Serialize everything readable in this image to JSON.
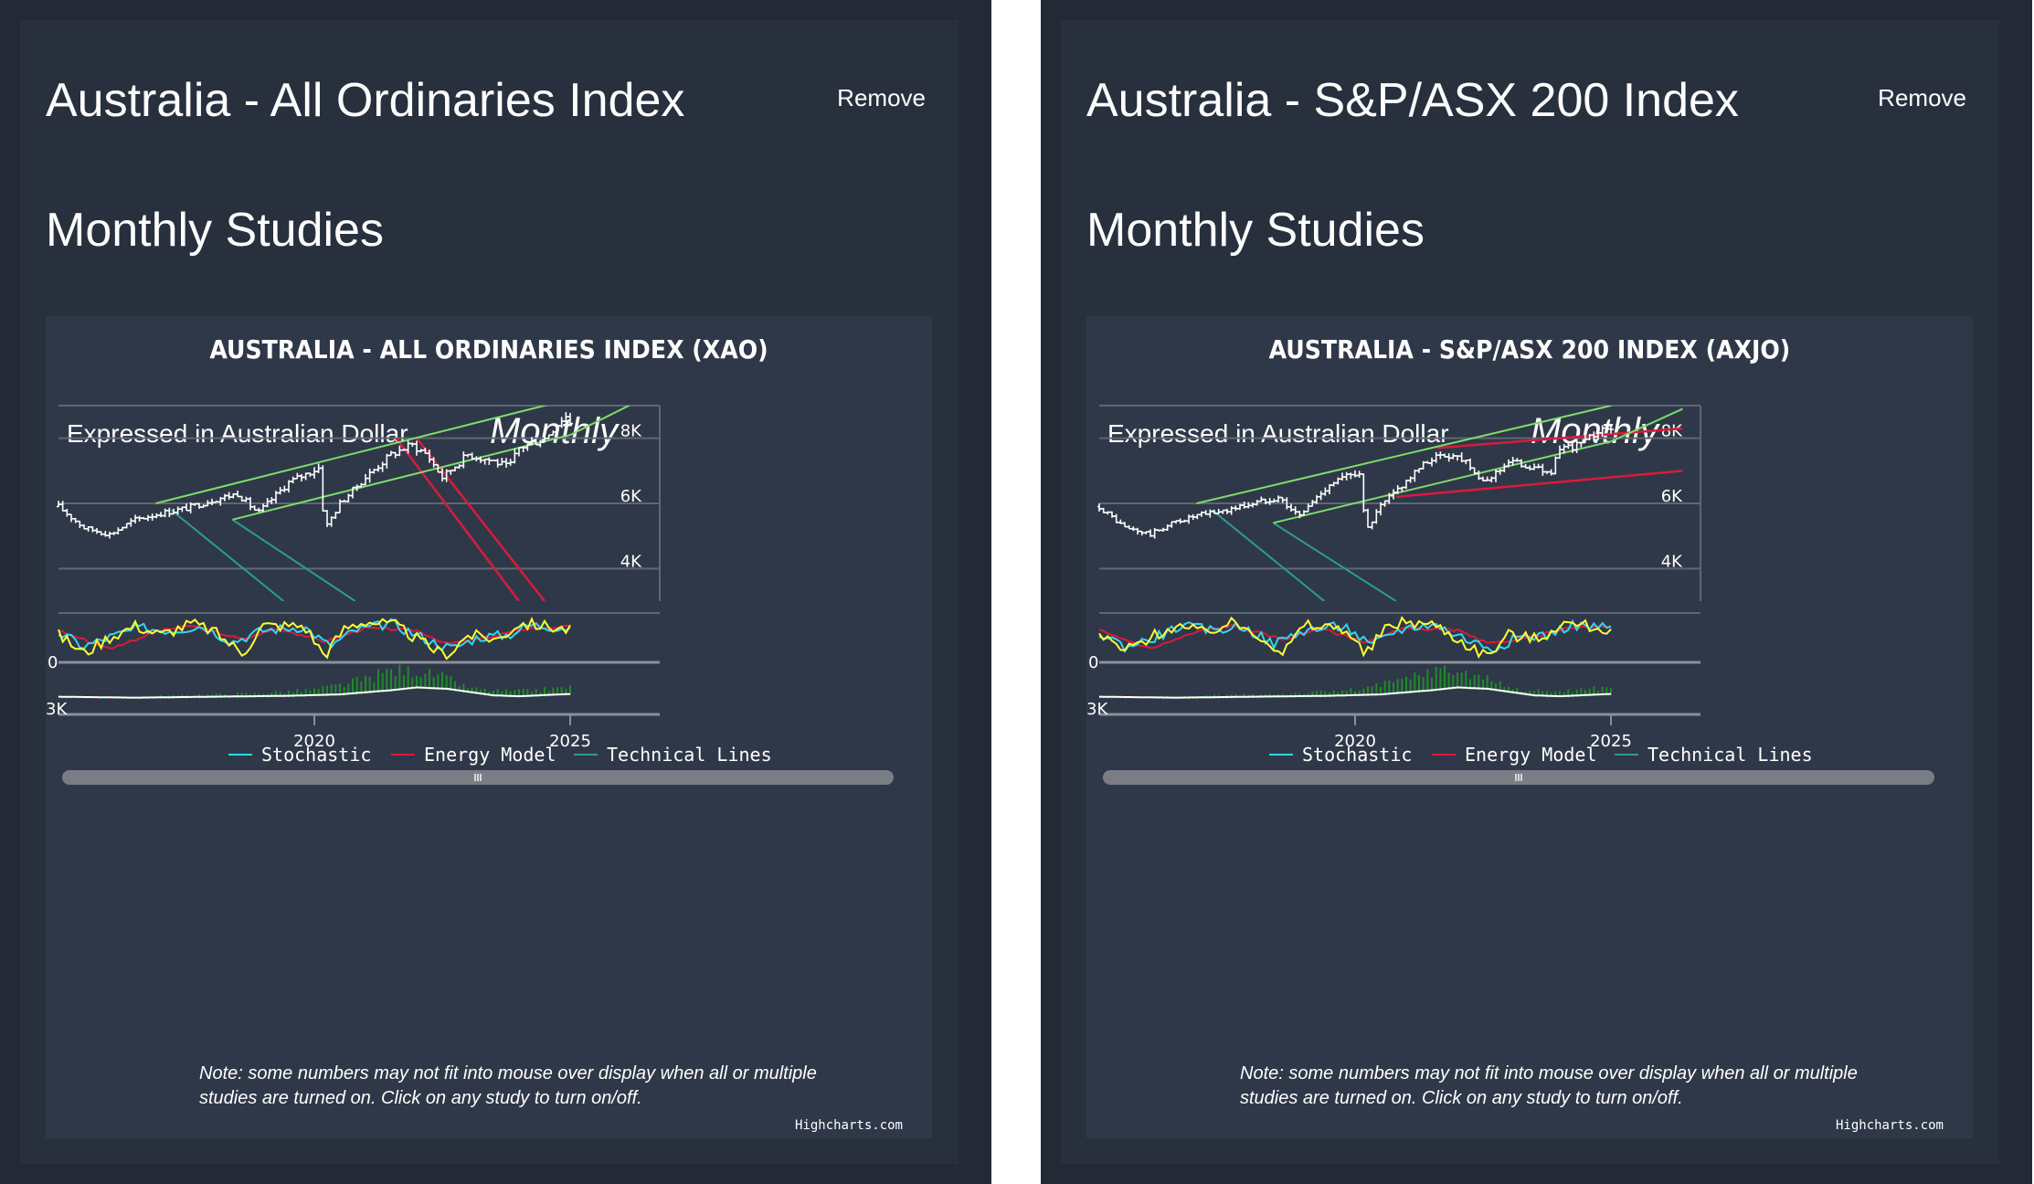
{
  "colors": {
    "page_bg": "#232a36",
    "card_bg": "#28303e",
    "chart_bg": "#2f3848",
    "candles": "#ffffff",
    "channel": "#7ddc6a",
    "stochastic_k": "#ffff33",
    "stochastic_d": "#33d6ee",
    "energy_model": "#d81b3c",
    "technical_lines": "#2a9d8f",
    "volume_bars": "#1f8a2a",
    "legend_bg": "#1a1f29"
  },
  "panels": [
    {
      "title": "Australia - All Ordinaries Index",
      "remove_label": "Remove",
      "section_title": "Monthly Studies",
      "chart_title": "AUSTRALIA - ALL ORDINARIES INDEX (XAO)",
      "currency_label": "Expressed in Australian Dollar",
      "period_label": "Monthly",
      "navigator_handle_icon": "grip-lines-icon",
      "note": "Note: some numbers may not fit into mouse over display when all or multiple studies are turned on. Click on any study to turn on/off.",
      "credits": "Highcharts.com",
      "legend": [
        "Stochastic",
        "Energy Model",
        "Technical Lines"
      ]
    },
    {
      "title": "Australia - S&P/ASX 200 Index",
      "remove_label": "Remove",
      "section_title": "Monthly Studies",
      "chart_title": "AUSTRALIA - S&P/ASX 200 INDEX (AXJO)",
      "currency_label": "Expressed in Australian Dollar",
      "period_label": "Monthly",
      "navigator_handle_icon": "grip-lines-icon",
      "note": "Note: some numbers may not fit into mouse over display when all or multiple studies are turned on. Click on any study to turn on/off.",
      "credits": "Highcharts.com",
      "legend": [
        "Stochastic",
        "Energy Model",
        "Technical Lines"
      ]
    }
  ],
  "chart_data": [
    {
      "type": "candlestick",
      "title": "AUSTRALIA - ALL ORDINARIES INDEX (XAO)",
      "x_range": [
        2015.0,
        2026.5
      ],
      "x_ticks": [
        {
          "value": 2020,
          "label": "2020"
        },
        {
          "value": 2025,
          "label": "2025"
        }
      ],
      "price_axis": {
        "range": [
          3000,
          9000
        ],
        "ticks": [
          {
            "value": 8000,
            "label": "8K"
          },
          {
            "value": 6000,
            "label": "6K"
          },
          {
            "value": 4000,
            "label": "4K"
          }
        ]
      },
      "close_anchors": [
        [
          2015.0,
          5900
        ],
        [
          2015.5,
          5250
        ],
        [
          2016.0,
          5050
        ],
        [
          2016.5,
          5500
        ],
        [
          2017.0,
          5700
        ],
        [
          2017.5,
          5850
        ],
        [
          2018.0,
          6100
        ],
        [
          2018.5,
          6300
        ],
        [
          2018.9,
          5700
        ],
        [
          2019.5,
          6650
        ],
        [
          2020.1,
          7100
        ],
        [
          2020.2,
          5200
        ],
        [
          2020.5,
          6000
        ],
        [
          2021.0,
          6800
        ],
        [
          2021.5,
          7500
        ],
        [
          2021.9,
          7800
        ],
        [
          2022.2,
          7500
        ],
        [
          2022.5,
          6800
        ],
        [
          2023.0,
          7500
        ],
        [
          2023.5,
          7300
        ],
        [
          2023.8,
          7100
        ],
        [
          2024.0,
          7700
        ],
        [
          2024.5,
          8000
        ],
        [
          2024.9,
          8700
        ],
        [
          2025.0,
          8500
        ]
      ],
      "channel_lines": [
        [
          [
            2016.9,
            6000
          ],
          [
            2025.0,
            9200
          ],
          [
            2026.0,
            10000
          ]
        ],
        [
          [
            2018.4,
            5500
          ],
          [
            2025.0,
            8100
          ],
          [
            2026.4,
            9200
          ]
        ]
      ],
      "technical_lines": [
        [
          [
            2017.2,
            5800
          ],
          [
            2019.4,
            3000
          ]
        ],
        [
          [
            2018.4,
            5500
          ],
          [
            2020.8,
            3000
          ]
        ]
      ],
      "energy_lines": [
        [
          [
            2021.6,
            8000
          ],
          [
            2024.0,
            3000
          ]
        ],
        [
          [
            2022.0,
            8000
          ],
          [
            2024.5,
            3000
          ]
        ]
      ],
      "stochastic_axis": {
        "range": [
          0,
          100
        ],
        "ticks": [
          {
            "value": 0,
            "label": "0"
          }
        ]
      },
      "stochastic_k_anchors": [
        [
          2015.0,
          60
        ],
        [
          2015.5,
          20
        ],
        [
          2016.0,
          55
        ],
        [
          2016.5,
          80
        ],
        [
          2017.0,
          60
        ],
        [
          2017.6,
          85
        ],
        [
          2018.0,
          70
        ],
        [
          2018.6,
          20
        ],
        [
          2019.0,
          80
        ],
        [
          2019.8,
          80
        ],
        [
          2020.2,
          15
        ],
        [
          2020.6,
          75
        ],
        [
          2021.0,
          90
        ],
        [
          2021.6,
          80
        ],
        [
          2022.3,
          30
        ],
        [
          2022.6,
          15
        ],
        [
          2023.0,
          60
        ],
        [
          2023.6,
          50
        ],
        [
          2024.0,
          85
        ],
        [
          2024.5,
          80
        ],
        [
          2025.0,
          70
        ]
      ],
      "stochastic_d_anchors": [
        [
          2015.0,
          65
        ],
        [
          2015.5,
          35
        ],
        [
          2016.0,
          55
        ],
        [
          2016.6,
          75
        ],
        [
          2017.2,
          70
        ],
        [
          2017.8,
          80
        ],
        [
          2018.4,
          45
        ],
        [
          2019.0,
          70
        ],
        [
          2019.8,
          78
        ],
        [
          2020.3,
          35
        ],
        [
          2020.8,
          70
        ],
        [
          2021.5,
          85
        ],
        [
          2022.3,
          45
        ],
        [
          2022.7,
          30
        ],
        [
          2023.2,
          55
        ],
        [
          2023.8,
          60
        ],
        [
          2024.2,
          82
        ],
        [
          2025.0,
          75
        ]
      ],
      "energy_model_anchors": [
        [
          2015.0,
          70
        ],
        [
          2016.0,
          30
        ],
        [
          2017.0,
          70
        ],
        [
          2017.6,
          80
        ],
        [
          2018.6,
          50
        ],
        [
          2019.3,
          75
        ],
        [
          2020.2,
          45
        ],
        [
          2021.0,
          75
        ],
        [
          2022.0,
          70
        ],
        [
          2022.6,
          40
        ],
        [
          2023.4,
          55
        ],
        [
          2024.2,
          75
        ],
        [
          2025.0,
          78
        ]
      ],
      "momentum_axis": {
        "range": [
          0,
          10000
        ],
        "ticks": [
          {
            "value": 3000,
            "label": "3K"
          }
        ]
      },
      "momentum_line_anchors": [
        [
          2015.0,
          3800
        ],
        [
          2016.5,
          3600
        ],
        [
          2018.0,
          3800
        ],
        [
          2019.5,
          4000
        ],
        [
          2020.5,
          4300
        ],
        [
          2021.5,
          5200
        ],
        [
          2022.0,
          5800
        ],
        [
          2022.6,
          5500
        ],
        [
          2023.5,
          4100
        ],
        [
          2024.0,
          3900
        ],
        [
          2025.0,
          4400
        ]
      ],
      "volume_bar_anchors": [
        [
          2015.0,
          200
        ],
        [
          2016.0,
          400
        ],
        [
          2017.5,
          700
        ],
        [
          2019.0,
          1000
        ],
        [
          2020.0,
          1500
        ],
        [
          2021.0,
          3200
        ],
        [
          2021.5,
          4800
        ],
        [
          2022.5,
          3000
        ],
        [
          2023.0,
          1200
        ],
        [
          2024.0,
          1400
        ],
        [
          2025.0,
          1800
        ]
      ],
      "legend": [
        "Stochastic",
        "Energy Model",
        "Technical Lines"
      ]
    },
    {
      "type": "candlestick",
      "title": "AUSTRALIA - S&P/ASX 200 INDEX (AXJO)",
      "x_range": [
        2015.0,
        2026.5
      ],
      "x_ticks": [
        {
          "value": 2020,
          "label": "2020"
        },
        {
          "value": 2025,
          "label": "2025"
        }
      ],
      "price_axis": {
        "range": [
          3000,
          9000
        ],
        "ticks": [
          {
            "value": 8000,
            "label": "8K"
          },
          {
            "value": 6000,
            "label": "6K"
          },
          {
            "value": 4000,
            "label": "4K"
          }
        ]
      },
      "close_anchors": [
        [
          2015.0,
          5900
        ],
        [
          2015.5,
          5250
        ],
        [
          2016.0,
          5050
        ],
        [
          2016.5,
          5450
        ],
        [
          2017.0,
          5650
        ],
        [
          2017.5,
          5800
        ],
        [
          2018.0,
          6000
        ],
        [
          2018.5,
          6200
        ],
        [
          2018.9,
          5600
        ],
        [
          2019.5,
          6600
        ],
        [
          2020.1,
          7000
        ],
        [
          2020.2,
          5100
        ],
        [
          2020.5,
          5900
        ],
        [
          2021.0,
          6700
        ],
        [
          2021.5,
          7400
        ],
        [
          2021.9,
          7500
        ],
        [
          2022.2,
          7300
        ],
        [
          2022.5,
          6600
        ],
        [
          2023.0,
          7300
        ],
        [
          2023.5,
          7100
        ],
        [
          2023.8,
          6900
        ],
        [
          2024.0,
          7600
        ],
        [
          2024.5,
          7900
        ],
        [
          2024.9,
          8400
        ],
        [
          2025.0,
          8200
        ]
      ],
      "channel_lines": [
        [
          [
            2016.9,
            6000
          ],
          [
            2025.0,
            9000
          ],
          [
            2026.4,
            10000
          ]
        ],
        [
          [
            2018.4,
            5400
          ],
          [
            2025.0,
            7900
          ],
          [
            2026.4,
            8900
          ]
        ]
      ],
      "technical_lines": [
        [
          [
            2017.2,
            5800
          ],
          [
            2019.4,
            3000
          ]
        ],
        [
          [
            2018.4,
            5400
          ],
          [
            2020.8,
            3000
          ]
        ]
      ],
      "energy_lines": [
        [
          [
            2020.8,
            6200
          ],
          [
            2026.4,
            7000
          ]
        ],
        [
          [
            2021.6,
            7700
          ],
          [
            2026.4,
            8300
          ]
        ]
      ],
      "stochastic_axis": {
        "range": [
          0,
          100
        ],
        "ticks": [
          {
            "value": 0,
            "label": "0"
          }
        ]
      },
      "stochastic_k_anchors": [
        [
          2015.0,
          60
        ],
        [
          2015.5,
          25
        ],
        [
          2016.0,
          55
        ],
        [
          2016.5,
          80
        ],
        [
          2017.0,
          65
        ],
        [
          2017.6,
          85
        ],
        [
          2018.0,
          70
        ],
        [
          2018.6,
          20
        ],
        [
          2019.0,
          80
        ],
        [
          2019.8,
          75
        ],
        [
          2020.2,
          15
        ],
        [
          2020.6,
          75
        ],
        [
          2021.0,
          90
        ],
        [
          2021.6,
          80
        ],
        [
          2022.3,
          30
        ],
        [
          2022.6,
          15
        ],
        [
          2023.0,
          60
        ],
        [
          2023.6,
          50
        ],
        [
          2024.0,
          85
        ],
        [
          2024.5,
          80
        ],
        [
          2025.0,
          70
        ]
      ],
      "stochastic_d_anchors": [
        [
          2015.0,
          65
        ],
        [
          2015.5,
          35
        ],
        [
          2016.0,
          50
        ],
        [
          2016.6,
          80
        ],
        [
          2017.2,
          70
        ],
        [
          2017.8,
          80
        ],
        [
          2018.4,
          40
        ],
        [
          2019.0,
          70
        ],
        [
          2019.8,
          80
        ],
        [
          2020.3,
          35
        ],
        [
          2020.8,
          70
        ],
        [
          2021.5,
          85
        ],
        [
          2022.3,
          45
        ],
        [
          2022.7,
          30
        ],
        [
          2023.2,
          55
        ],
        [
          2023.8,
          60
        ],
        [
          2024.2,
          82
        ],
        [
          2025.0,
          75
        ]
      ],
      "energy_model_anchors": [
        [
          2015.0,
          70
        ],
        [
          2016.0,
          30
        ],
        [
          2017.0,
          70
        ],
        [
          2017.6,
          80
        ],
        [
          2018.6,
          50
        ],
        [
          2019.3,
          75
        ],
        [
          2020.2,
          45
        ],
        [
          2021.0,
          75
        ],
        [
          2022.0,
          70
        ],
        [
          2022.6,
          40
        ],
        [
          2023.4,
          55
        ],
        [
          2024.2,
          75
        ],
        [
          2025.0,
          78
        ]
      ],
      "momentum_axis": {
        "range": [
          0,
          10000
        ],
        "ticks": [
          {
            "value": 3000,
            "label": "3K"
          }
        ]
      },
      "momentum_line_anchors": [
        [
          2015.0,
          3800
        ],
        [
          2016.5,
          3600
        ],
        [
          2018.0,
          3800
        ],
        [
          2019.5,
          4000
        ],
        [
          2020.5,
          4300
        ],
        [
          2021.5,
          5200
        ],
        [
          2022.0,
          5800
        ],
        [
          2022.6,
          5500
        ],
        [
          2023.5,
          4100
        ],
        [
          2024.0,
          3900
        ],
        [
          2025.0,
          4400
        ]
      ],
      "volume_bar_anchors": [
        [
          2015.0,
          200
        ],
        [
          2016.0,
          400
        ],
        [
          2017.5,
          700
        ],
        [
          2019.0,
          1000
        ],
        [
          2020.0,
          1500
        ],
        [
          2021.0,
          3200
        ],
        [
          2021.5,
          4800
        ],
        [
          2022.5,
          3000
        ],
        [
          2023.0,
          1200
        ],
        [
          2024.0,
          1400
        ],
        [
          2025.0,
          1800
        ]
      ],
      "legend": [
        "Stochastic",
        "Energy Model",
        "Technical Lines"
      ]
    }
  ]
}
